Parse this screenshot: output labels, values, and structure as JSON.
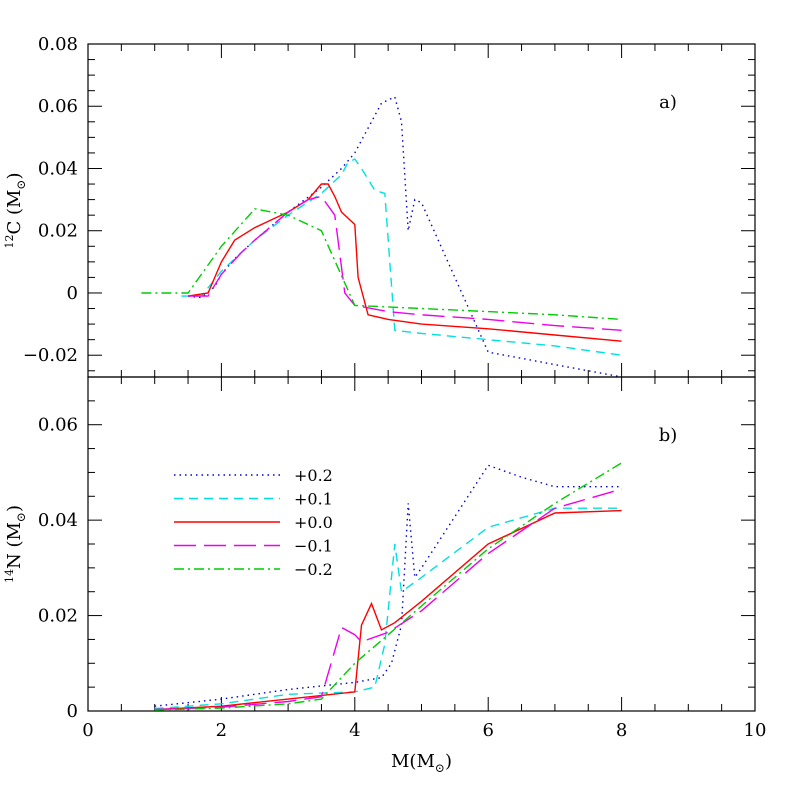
{
  "chart_data": [
    {
      "type": "line",
      "panel": "a)",
      "ylabel": {
        "pre": "12",
        "main": "C  (M",
        "sub": "⊙",
        "post": ")"
      },
      "xlim": [
        0,
        10
      ],
      "ylim": [
        -0.027,
        0.08
      ],
      "yticks": [
        {
          "v": -0.02,
          "label": "−0.02"
        },
        {
          "v": 0,
          "label": "0"
        },
        {
          "v": 0.02,
          "label": "0.02"
        },
        {
          "v": 0.04,
          "label": "0.04"
        },
        {
          "v": 0.06,
          "label": "0.06"
        },
        {
          "v": 0.08,
          "label": "0.08"
        }
      ],
      "series": [
        {
          "name": "+0.2",
          "color": "#0000cc",
          "dash": "dot",
          "x": [
            1.5,
            1.7,
            1.9,
            2.0,
            2.2,
            2.5,
            3.0,
            3.5,
            3.8,
            4.0,
            4.4,
            4.6,
            4.7,
            4.8,
            4.9,
            5.0,
            6.0,
            7.0,
            8.0
          ],
          "y": [
            -0.001,
            -0.0015,
            0.002,
            0.006,
            0.011,
            0.017,
            0.026,
            0.034,
            0.04,
            0.045,
            0.061,
            0.063,
            0.055,
            0.02,
            0.03,
            0.029,
            -0.019,
            -0.023,
            -0.027
          ]
        },
        {
          "name": "+0.1",
          "color": "#00e0e0",
          "dash": "shortdash",
          "x": [
            1.4,
            1.7,
            2.0,
            2.5,
            3.0,
            3.5,
            3.8,
            3.9,
            4.0,
            4.1,
            4.3,
            4.45,
            4.6,
            5.0,
            6.0,
            7.0,
            8.0
          ],
          "y": [
            -0.001,
            -0.001,
            0.007,
            0.017,
            0.025,
            0.032,
            0.038,
            0.042,
            0.043,
            0.04,
            0.033,
            0.032,
            -0.012,
            -0.013,
            -0.015,
            -0.017,
            -0.02
          ]
        },
        {
          "name": "+0.0",
          "color": "#ff0000",
          "dash": "solid",
          "x": [
            1.5,
            1.8,
            2.0,
            2.2,
            2.5,
            2.8,
            3.0,
            3.3,
            3.5,
            3.6,
            3.7,
            3.8,
            4.0,
            4.05,
            4.2,
            4.5,
            5.0,
            6.0,
            7.0,
            8.0
          ],
          "y": [
            -0.001,
            0.0,
            0.01,
            0.017,
            0.021,
            0.024,
            0.026,
            0.03,
            0.035,
            0.035,
            0.031,
            0.026,
            0.022,
            0.005,
            -0.007,
            -0.0085,
            -0.01,
            -0.0115,
            -0.0135,
            -0.0155
          ]
        },
        {
          "name": "−0.1",
          "color": "#ee00ee",
          "dash": "longdash",
          "x": [
            1.5,
            1.8,
            2.0,
            2.3,
            2.5,
            3.0,
            3.3,
            3.5,
            3.7,
            3.85,
            4.0,
            4.5,
            5.0,
            6.0,
            7.0,
            8.0
          ],
          "y": [
            -0.001,
            -0.001,
            0.006,
            0.013,
            0.017,
            0.026,
            0.03,
            0.031,
            0.025,
            0.0,
            -0.004,
            -0.006,
            -0.007,
            -0.0085,
            -0.0105,
            -0.012
          ]
        },
        {
          "name": "−0.2",
          "color": "#00cc00",
          "dash": "dashdot",
          "x": [
            0.8,
            1.5,
            2.0,
            2.5,
            3.0,
            3.5,
            4.0,
            5.0,
            6.0,
            7.0,
            8.0
          ],
          "y": [
            0.0,
            0.0,
            0.015,
            0.027,
            0.025,
            0.02,
            -0.004,
            -0.005,
            -0.006,
            -0.007,
            -0.0085
          ]
        }
      ]
    },
    {
      "type": "line",
      "panel": "b)",
      "ylabel": {
        "pre": "14",
        "main": "N  (M",
        "sub": "⊙",
        "post": ")"
      },
      "xlabel": {
        "main": "M(M",
        "sub": "⊙",
        "post": ")"
      },
      "xlim": [
        0,
        10
      ],
      "ylim": [
        0,
        0.07
      ],
      "xticks": [
        {
          "v": 0,
          "label": "0"
        },
        {
          "v": 2,
          "label": "2"
        },
        {
          "v": 4,
          "label": "4"
        },
        {
          "v": 6,
          "label": "6"
        },
        {
          "v": 8,
          "label": "8"
        },
        {
          "v": 10,
          "label": "10"
        }
      ],
      "yticks": [
        {
          "v": 0,
          "label": "0"
        },
        {
          "v": 0.02,
          "label": "0.02"
        },
        {
          "v": 0.04,
          "label": "0.04"
        },
        {
          "v": 0.06,
          "label": "0.06"
        }
      ],
      "series": [
        {
          "name": "+0.2",
          "color": "#0000cc",
          "dash": "dot",
          "x": [
            1.0,
            2.0,
            3.0,
            4.0,
            4.4,
            4.55,
            4.7,
            4.8,
            4.9,
            5.0,
            6.0,
            6.5,
            7.0,
            8.0
          ],
          "y": [
            0.001,
            0.0025,
            0.0045,
            0.006,
            0.007,
            0.01,
            0.018,
            0.0435,
            0.028,
            0.03,
            0.0515,
            0.049,
            0.047,
            0.047
          ]
        },
        {
          "name": "+0.1",
          "color": "#00e0e0",
          "dash": "shortdash",
          "x": [
            1.0,
            2.0,
            3.0,
            4.0,
            4.3,
            4.45,
            4.6,
            4.7,
            5.0,
            6.0,
            7.0,
            8.0
          ],
          "y": [
            0.0005,
            0.0015,
            0.0035,
            0.004,
            0.005,
            0.014,
            0.035,
            0.025,
            0.028,
            0.0385,
            0.0425,
            0.0425
          ]
        },
        {
          "name": "+0.0",
          "color": "#ff0000",
          "dash": "solid",
          "x": [
            1.0,
            2.0,
            3.0,
            4.0,
            4.1,
            4.25,
            4.4,
            4.6,
            5.0,
            6.0,
            7.0,
            8.0
          ],
          "y": [
            0.0003,
            0.001,
            0.0025,
            0.004,
            0.018,
            0.0225,
            0.017,
            0.0185,
            0.023,
            0.035,
            0.0415,
            0.042
          ]
        },
        {
          "name": "−0.1",
          "color": "#ee00ee",
          "dash": "longdash",
          "x": [
            1.0,
            2.0,
            3.0,
            3.5,
            3.8,
            4.0,
            4.1,
            4.5,
            5.0,
            6.0,
            7.0,
            8.0
          ],
          "y": [
            0.0003,
            0.0008,
            0.002,
            0.003,
            0.0175,
            0.016,
            0.0145,
            0.0165,
            0.021,
            0.033,
            0.0425,
            0.0465
          ]
        },
        {
          "name": "−0.2",
          "color": "#00cc00",
          "dash": "dashdot",
          "x": [
            1.0,
            2.0,
            3.0,
            3.5,
            4.0,
            4.5,
            5.0,
            6.0,
            7.0,
            8.0
          ],
          "y": [
            0.0002,
            0.0006,
            0.0015,
            0.0025,
            0.01,
            0.016,
            0.022,
            0.034,
            0.0435,
            0.052
          ]
        }
      ]
    }
  ],
  "legend": {
    "location": "upper-left of panel b",
    "entries": [
      "+0.2",
      "+0.1",
      "+0.0",
      "−0.1",
      "−0.2"
    ]
  }
}
